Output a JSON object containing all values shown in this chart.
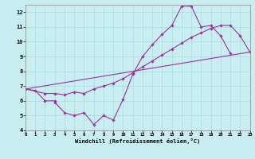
{
  "bg_color": "#c8eef2",
  "line_color": "#993399",
  "grid_color": "#a8dce0",
  "xlim": [
    0,
    23
  ],
  "ylim": [
    4,
    12.5
  ],
  "yticks": [
    4,
    5,
    6,
    7,
    8,
    9,
    10,
    11,
    12
  ],
  "xticks": [
    0,
    1,
    2,
    3,
    4,
    5,
    6,
    7,
    8,
    9,
    10,
    11,
    12,
    13,
    14,
    15,
    16,
    17,
    18,
    19,
    20,
    21,
    22,
    23
  ],
  "xlabel": "Windchill (Refroidissement éolien,°C)",
  "curve1_x": [
    0,
    1,
    2,
    3,
    3,
    4,
    5,
    6,
    7,
    8,
    9,
    10,
    11,
    12,
    13,
    14,
    15,
    16,
    17,
    18,
    19,
    20,
    21
  ],
  "curve1_y": [
    6.8,
    6.7,
    6.0,
    6.0,
    5.9,
    5.2,
    5.0,
    5.2,
    4.4,
    5.0,
    4.7,
    6.1,
    7.8,
    9.0,
    9.8,
    10.5,
    11.1,
    12.4,
    12.4,
    11.0,
    11.1,
    10.4,
    9.2
  ],
  "curve2_x": [
    0,
    2,
    3,
    4,
    5,
    6,
    7,
    8,
    9,
    10,
    11,
    12,
    13,
    14,
    15,
    16,
    17,
    18,
    19,
    20,
    21,
    22,
    23
  ],
  "curve2_y": [
    6.8,
    6.5,
    6.5,
    6.4,
    6.6,
    6.5,
    6.8,
    7.0,
    7.2,
    7.5,
    7.9,
    8.3,
    8.7,
    9.1,
    9.5,
    9.9,
    10.3,
    10.6,
    10.9,
    11.1,
    11.1,
    10.4,
    9.3
  ],
  "curve3_x": [
    0,
    23
  ],
  "curve3_y": [
    6.8,
    9.3
  ]
}
